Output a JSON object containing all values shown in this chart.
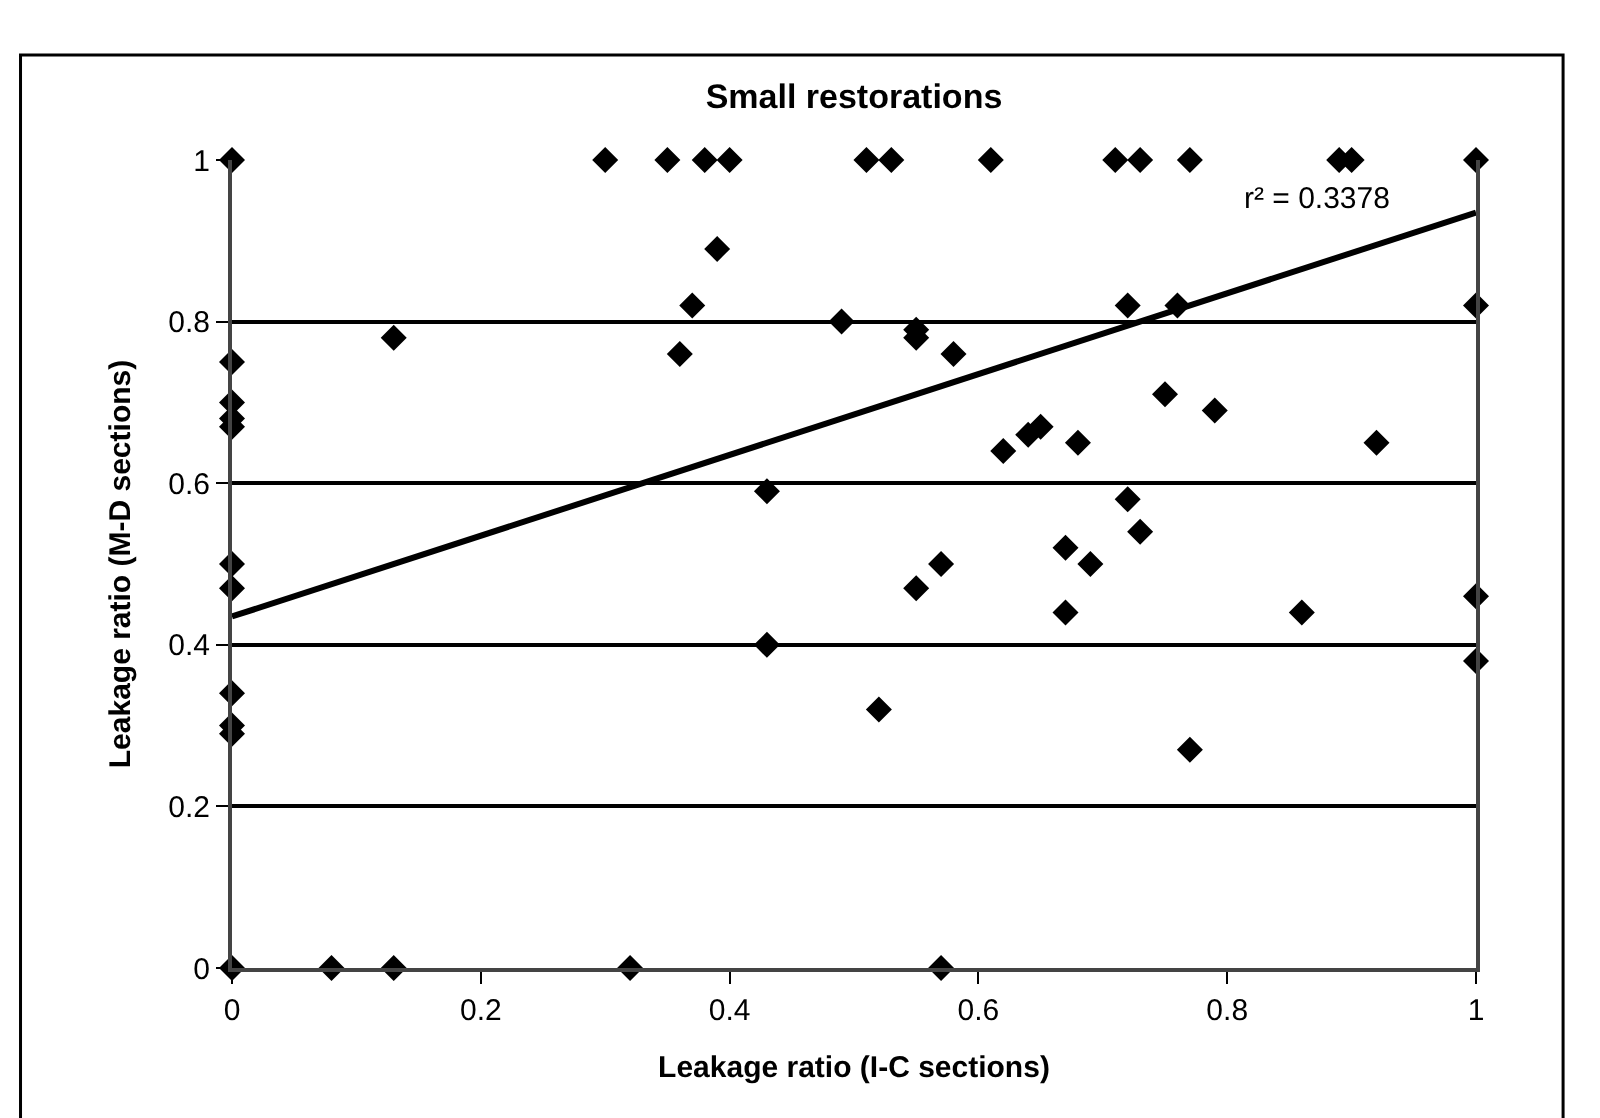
{
  "chart_data": {
    "type": "scatter",
    "title": "Small restorations",
    "xlabel": "Leakage ratio (I-C sections)",
    "ylabel": "Leakage ratio (M-D sections)",
    "annotations": [
      "r² = 0.3378"
    ],
    "series": [
      {
        "color": "#000000",
        "marker": "diamond",
        "x": [
          0,
          0.3,
          0.35,
          0.38,
          0.4,
          0.51,
          0.53,
          0.61,
          0.71,
          0.73,
          0.77,
          0.89,
          0.9,
          1.0,
          0,
          0,
          0,
          0,
          0,
          0,
          0,
          0,
          0,
          0,
          0.13,
          0.36,
          0.37,
          0.39,
          0.49,
          0.43,
          0.43,
          0.55,
          0.55,
          0.58,
          0.52,
          0.55,
          0.57,
          0.62,
          0.64,
          0.65,
          0.68,
          0.67,
          0.67,
          0.69,
          0.72,
          0.73,
          0.72,
          0.76,
          0.75,
          0.79,
          0.86,
          0.92,
          0.77,
          1.0,
          1.0,
          1.0,
          0.08,
          0.13,
          0.32,
          0.57
        ],
        "values": [
          1,
          1,
          1,
          1,
          1,
          1,
          1,
          1,
          1,
          1,
          1,
          1,
          1,
          1,
          0.75,
          0.7,
          0.68,
          0.67,
          0.5,
          0.47,
          0.34,
          0.3,
          0.29,
          0,
          0.78,
          0.76,
          0.82,
          0.89,
          0.8,
          0.59,
          0.4,
          0.78,
          0.79,
          0.76,
          0.32,
          0.47,
          0.5,
          0.64,
          0.66,
          0.67,
          0.65,
          0.52,
          0.44,
          0.5,
          0.58,
          0.54,
          0.82,
          0.82,
          0.71,
          0.69,
          0.44,
          0.65,
          0.27,
          0.82,
          0.46,
          0.38,
          0,
          0,
          0,
          0
        ]
      },
      {
        "type": "line",
        "color": "#000000",
        "marker": "none",
        "line_style": "solid",
        "x": [
          0,
          1
        ],
        "values": [
          0.435,
          0.935
        ]
      }
    ],
    "xlim": [
      0,
      1
    ],
    "xticks": [
      0,
      0.2,
      0.4,
      0.6,
      0.8,
      1
    ],
    "ylim": [
      0,
      1
    ],
    "yticks": [
      0,
      0.2,
      0.4,
      0.6,
      0.8,
      1
    ],
    "grid": "y"
  }
}
